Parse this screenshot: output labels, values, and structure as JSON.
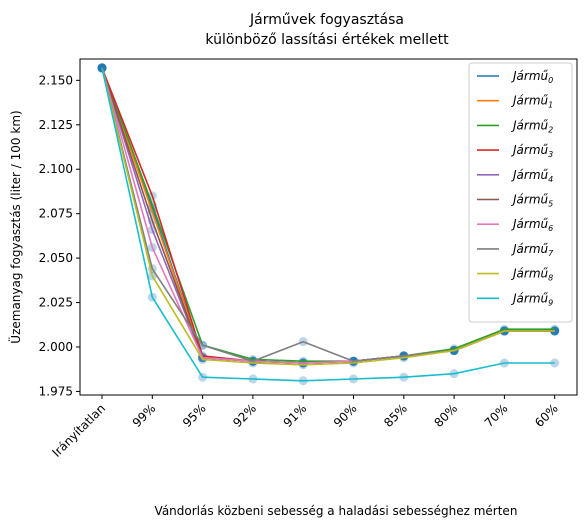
{
  "chart_data": {
    "type": "line",
    "title": [
      "Járművek fogyasztása",
      "különböző lassítási értékek mellett"
    ],
    "xlabel": "Vándorlás közbeni sebesség a haladási sebességhez mérten",
    "ylabel": "Üzemanyag fogyasztás (liter / 100 km)",
    "categories": [
      "Irányítatlan",
      "99%",
      "95%",
      "92%",
      "91%",
      "90%",
      "85%",
      "80%",
      "70%",
      "60%"
    ],
    "ylim": [
      1.973,
      2.162
    ],
    "yticks": [
      "2.150",
      "2.125",
      "2.100",
      "2.075",
      "2.050",
      "2.025",
      "2.000",
      "1.975"
    ],
    "ytick_values": [
      2.15,
      2.125,
      2.1,
      2.075,
      2.05,
      2.025,
      2.0,
      1.975
    ],
    "legend_position": "top-right",
    "grid": false,
    "series": [
      {
        "name": "Jármű",
        "sub": "0",
        "color": "#1f77b4",
        "values": [
          2.157,
          2.078,
          1.994,
          1.992,
          1.991,
          1.992,
          1.995,
          1.998,
          2.009,
          2.009
        ]
      },
      {
        "name": "Jármű",
        "sub": "1",
        "color": "#ff7f0e",
        "values": [
          2.157,
          2.076,
          1.994,
          1.992,
          1.991,
          1.992,
          1.995,
          1.998,
          2.009,
          2.009
        ]
      },
      {
        "name": "Jármű",
        "sub": "2",
        "color": "#2ca02c",
        "values": [
          2.157,
          2.08,
          2.001,
          1.993,
          1.992,
          1.992,
          1.995,
          1.999,
          2.01,
          2.01
        ]
      },
      {
        "name": "Jármű",
        "sub": "3",
        "color": "#d62728",
        "values": [
          2.157,
          2.085,
          1.995,
          1.992,
          1.991,
          1.992,
          1.995,
          1.998,
          2.009,
          2.009
        ]
      },
      {
        "name": "Jármű",
        "sub": "4",
        "color": "#9467bd",
        "values": [
          2.157,
          2.066,
          1.994,
          1.992,
          1.991,
          1.992,
          1.995,
          1.998,
          2.009,
          2.009
        ]
      },
      {
        "name": "Jármű",
        "sub": "5",
        "color": "#8c564b",
        "values": [
          2.157,
          2.071,
          1.994,
          1.992,
          1.991,
          1.992,
          1.995,
          1.998,
          2.009,
          2.009
        ]
      },
      {
        "name": "Jármű",
        "sub": "6",
        "color": "#e377c2",
        "values": [
          2.157,
          2.056,
          1.994,
          1.992,
          1.991,
          1.992,
          1.995,
          1.998,
          2.009,
          2.009
        ]
      },
      {
        "name": "Jármű",
        "sub": "7",
        "color": "#7f7f7f",
        "values": [
          2.157,
          2.044,
          2.001,
          1.992,
          2.003,
          1.992,
          1.995,
          1.998,
          2.009,
          2.009
        ]
      },
      {
        "name": "Jármű",
        "sub": "8",
        "color": "#bcbd22",
        "values": [
          2.157,
          2.04,
          1.993,
          1.991,
          1.99,
          1.991,
          1.994,
          1.998,
          2.009,
          2.009
        ]
      },
      {
        "name": "Jármű",
        "sub": "9",
        "color": "#17becf",
        "values": [
          2.157,
          2.028,
          1.983,
          1.982,
          1.981,
          1.982,
          1.983,
          1.985,
          1.991,
          1.991
        ]
      }
    ],
    "marker_color": "#1f77b4"
  }
}
